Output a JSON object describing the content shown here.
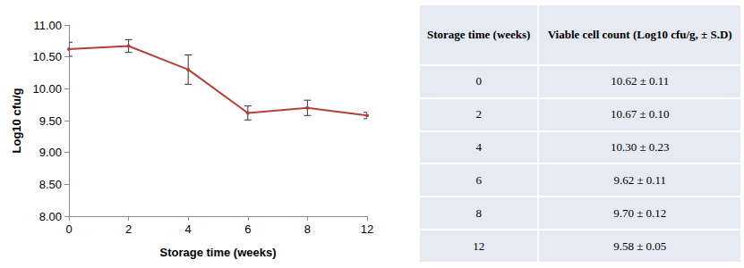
{
  "chart_data": {
    "type": "line",
    "x_label": "Storage time (weeks)",
    "y_label": "Log10 cfu/g",
    "categories": [
      "0",
      "2",
      "4",
      "6",
      "8",
      "12"
    ],
    "values": [
      10.62,
      10.67,
      10.3,
      9.62,
      9.7,
      9.58
    ],
    "errors": [
      0.11,
      0.1,
      0.23,
      0.11,
      0.12,
      0.05
    ],
    "color": "#b5403a",
    "marker": "circle",
    "grid": false,
    "ylim": [
      8,
      11
    ],
    "yticks": [
      {
        "value": 8,
        "label": "8.00"
      },
      {
        "value": 8.5,
        "label": "8.50"
      },
      {
        "value": 9,
        "label": "9.00"
      },
      {
        "value": 9.5,
        "label": "9.50"
      },
      {
        "value": 10,
        "label": "10.00"
      },
      {
        "value": 10.5,
        "label": "10.50"
      },
      {
        "value": 11,
        "label": "11.00"
      }
    ]
  },
  "table": {
    "header": [
      "Storage time (weeks)",
      "Viable cell count (Log10 cfu/g,  ± S.D)"
    ],
    "rows": [
      [
        "0",
        "10.62 ± 0.11"
      ],
      [
        "2",
        "10.67 ± 0.10"
      ],
      [
        "4",
        "10.30 ± 0.23"
      ],
      [
        "6",
        "9.62 ± 0.11"
      ],
      [
        "8",
        "9.70 ± 0.12"
      ],
      [
        "12",
        "9.58 ± 0.05"
      ]
    ]
  }
}
